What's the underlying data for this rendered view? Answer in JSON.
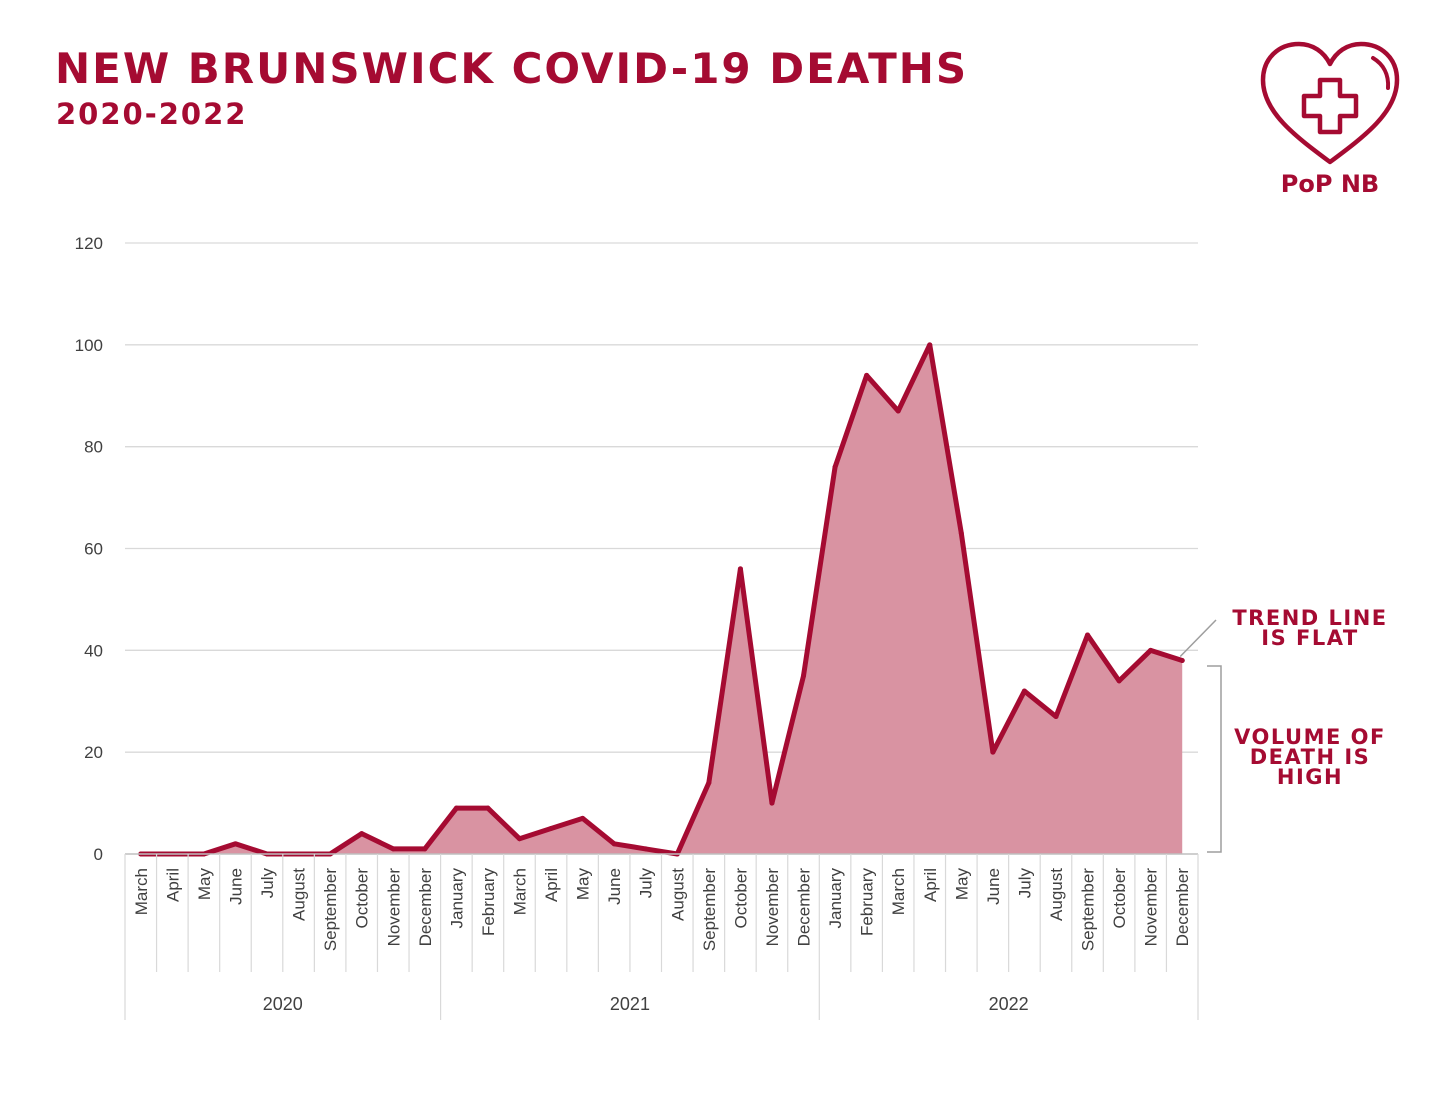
{
  "title": "NEW BRUNSWICK COVID-19 DEATHS",
  "subtitle": "2020-2022",
  "logo": {
    "text": "PoP NB",
    "icon": "heart-cross-icon"
  },
  "colors": {
    "accent": "#a50b32",
    "area_fill": "#d993a2",
    "grid": "#d9d9d9",
    "axis": "#bfbfbf",
    "text": "#404040"
  },
  "annotations": [
    {
      "text": "TREND LINE\nIS FLAT"
    },
    {
      "text": "VOLUME OF\nDEATH IS\nHIGH"
    }
  ],
  "chart_data": {
    "type": "area",
    "title": "",
    "xlabel": "",
    "ylabel": "",
    "ylim": [
      0,
      120
    ],
    "yticks": [
      0,
      20,
      40,
      60,
      80,
      100,
      120
    ],
    "grid": true,
    "legend": "none",
    "years": [
      {
        "label": "2020",
        "months": 10
      },
      {
        "label": "2021",
        "months": 12
      },
      {
        "label": "2022",
        "months": 12
      }
    ],
    "categories": [
      "March",
      "April",
      "May",
      "June",
      "July",
      "August",
      "September",
      "October",
      "November",
      "December",
      "January",
      "February",
      "March",
      "April",
      "May",
      "June",
      "July",
      "August",
      "September",
      "October",
      "November",
      "December",
      "January",
      "February",
      "March",
      "April",
      "May",
      "June",
      "July",
      "August",
      "September",
      "October",
      "November",
      "December"
    ],
    "series": [
      {
        "values": [
          0,
          0,
          0,
          2,
          0,
          0,
          0,
          4,
          1,
          1,
          9,
          9,
          3,
          5,
          7,
          2,
          1,
          0,
          14,
          56,
          10,
          35,
          76,
          94,
          87,
          100,
          63,
          20,
          32,
          27,
          43,
          34,
          40,
          38
        ]
      }
    ]
  }
}
